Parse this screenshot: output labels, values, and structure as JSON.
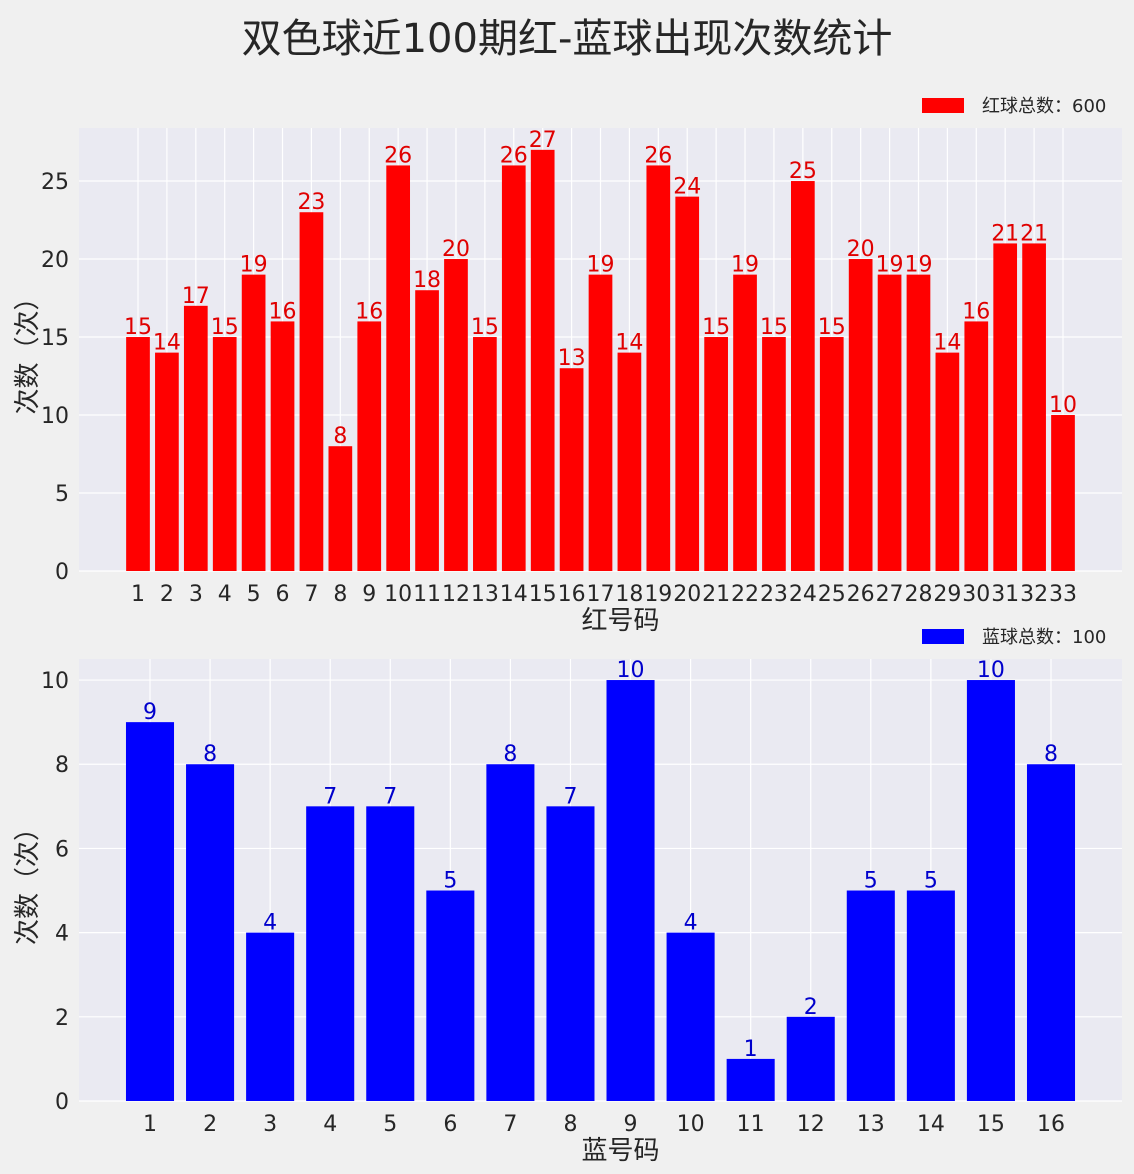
{
  "figure": {
    "title": "双色球近100期红-蓝球出现次数统计",
    "background": "#f0f0f0",
    "plot_background": "#eaeaf2",
    "grid_color": "#ffffff",
    "text_color": "#262626"
  },
  "chart_data": [
    {
      "type": "bar",
      "title": "",
      "xlabel": "红号码",
      "ylabel": "次数（次）",
      "ylim": [
        0,
        28.4
      ],
      "yticks": [
        0,
        5,
        10,
        15,
        20,
        25
      ],
      "grid": true,
      "bar_color": "#ff0000",
      "label_color": "#e00000",
      "legend": {
        "label": "红球总数：600",
        "position": "upper right",
        "color": "#ff0000"
      },
      "categories": [
        "1",
        "2",
        "3",
        "4",
        "5",
        "6",
        "7",
        "8",
        "9",
        "10",
        "11",
        "12",
        "13",
        "14",
        "15",
        "16",
        "17",
        "18",
        "19",
        "20",
        "21",
        "22",
        "23",
        "24",
        "25",
        "26",
        "27",
        "28",
        "29",
        "30",
        "31",
        "32",
        "33"
      ],
      "values": [
        15,
        14,
        17,
        15,
        19,
        16,
        23,
        8,
        16,
        26,
        18,
        20,
        15,
        26,
        27,
        13,
        19,
        14,
        26,
        24,
        15,
        19,
        15,
        25,
        15,
        20,
        19,
        19,
        14,
        16,
        21,
        21,
        10
      ]
    },
    {
      "type": "bar",
      "title": "",
      "xlabel": "蓝号码",
      "ylabel": "次数（次）",
      "ylim": [
        0,
        10.5
      ],
      "yticks": [
        0,
        2,
        4,
        6,
        8,
        10
      ],
      "grid": true,
      "bar_color": "#0000ff",
      "label_color": "#0000cc",
      "legend": {
        "label": "蓝球总数：100",
        "position": "upper right",
        "color": "#0000ff"
      },
      "categories": [
        "1",
        "2",
        "3",
        "4",
        "5",
        "6",
        "7",
        "8",
        "9",
        "10",
        "11",
        "12",
        "13",
        "14",
        "15",
        "16"
      ],
      "values": [
        9,
        8,
        4,
        7,
        7,
        5,
        8,
        7,
        10,
        4,
        1,
        2,
        5,
        5,
        10,
        8
      ]
    }
  ]
}
